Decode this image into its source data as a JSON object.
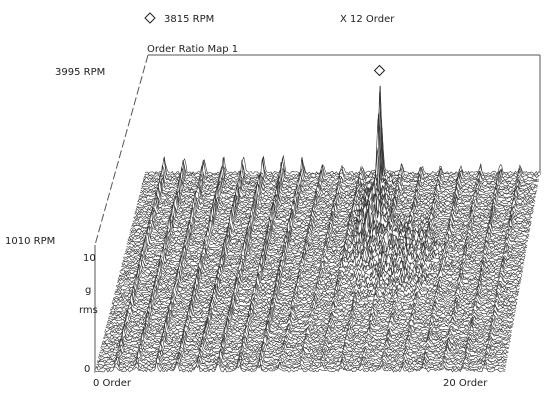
{
  "chart_data": {
    "type": "waterfall",
    "title": "Order Ratio Map 1",
    "cursor": {
      "symbol_icon": "diamond-marker-icon",
      "rpm_readout": "3815 RPM",
      "order_readout": "X 12 Order",
      "rpm": 3815,
      "order": 12
    },
    "rpm_axis": {
      "start_label": "1010 RPM",
      "end_label": "3995 RPM",
      "start": 1010,
      "end": 3995
    },
    "x_axis": {
      "start_label": "0 Order",
      "end_label": "20 Order",
      "min": 0,
      "max": 20
    },
    "y_axis": {
      "top_label": "10",
      "bottom_label": "0",
      "unit_line1": "g",
      "unit_line2": "rms",
      "min": 0,
      "max": 10
    },
    "peak_orders": [
      1,
      2,
      3,
      4,
      5,
      6,
      7,
      8,
      9,
      10,
      11,
      12,
      13,
      14,
      15,
      16,
      17,
      18,
      19
    ],
    "peak_amplitude_g": {
      "order_12_at_3815_rpm": 9.6,
      "typical_low_orders": 1.5,
      "typical_high_orders": 0.8
    },
    "line_color": "#333333",
    "fill_color": "#ffffff"
  }
}
